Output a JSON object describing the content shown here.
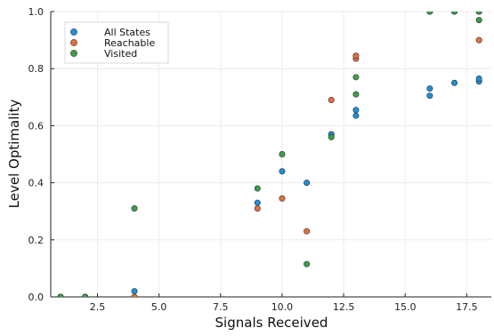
{
  "chart_data": {
    "type": "scatter",
    "xlabel": "Signals Received",
    "ylabel": "Level Optimality",
    "xlim": [
      0.6,
      18.5
    ],
    "ylim": [
      0,
      1
    ],
    "x_ticks": [
      2.5,
      5.0,
      7.5,
      10.0,
      12.5,
      15.0,
      17.5
    ],
    "x_tick_labels": [
      "2.5",
      "5.0",
      "7.5",
      "10.0",
      "12.5",
      "15.0",
      "17.5"
    ],
    "y_ticks": [
      0.0,
      0.2,
      0.4,
      0.6,
      0.8,
      1.0
    ],
    "y_tick_labels": [
      "0.0",
      "0.2",
      "0.4",
      "0.6",
      "0.8",
      "1.0"
    ],
    "grid": true,
    "legend_position": "top-left",
    "series": [
      {
        "name": "All States",
        "color": "#1f8fd8",
        "points": [
          [
            1,
            0.0
          ],
          [
            2,
            0.0
          ],
          [
            4,
            0.02
          ],
          [
            9,
            0.33
          ],
          [
            10,
            0.44
          ],
          [
            11,
            0.4
          ],
          [
            12,
            0.57
          ],
          [
            13,
            0.635
          ],
          [
            13,
            0.655
          ],
          [
            16,
            0.705
          ],
          [
            16,
            0.73
          ],
          [
            17,
            0.75
          ],
          [
            18,
            0.755
          ],
          [
            18,
            0.765
          ]
        ]
      },
      {
        "name": "Reachable",
        "color": "#e2703f",
        "points": [
          [
            1,
            0.0
          ],
          [
            2,
            0.0
          ],
          [
            4,
            0.0
          ],
          [
            9,
            0.31
          ],
          [
            10,
            0.345
          ],
          [
            11,
            0.23
          ],
          [
            12,
            0.69
          ],
          [
            13,
            0.835
          ],
          [
            13,
            0.845
          ],
          [
            16,
            1.0
          ],
          [
            17,
            1.0
          ],
          [
            18,
            1.0
          ],
          [
            18,
            0.9
          ]
        ]
      },
      {
        "name": "Visited",
        "color": "#3c9e4a",
        "points": [
          [
            1,
            0.0
          ],
          [
            2,
            0.0
          ],
          [
            4,
            0.31
          ],
          [
            9,
            0.38
          ],
          [
            10,
            0.5
          ],
          [
            11,
            0.115
          ],
          [
            12,
            0.56
          ],
          [
            13,
            0.71
          ],
          [
            13,
            0.77
          ],
          [
            16,
            1.0
          ],
          [
            17,
            1.0
          ],
          [
            18,
            1.0
          ],
          [
            18,
            0.97
          ]
        ]
      }
    ]
  }
}
